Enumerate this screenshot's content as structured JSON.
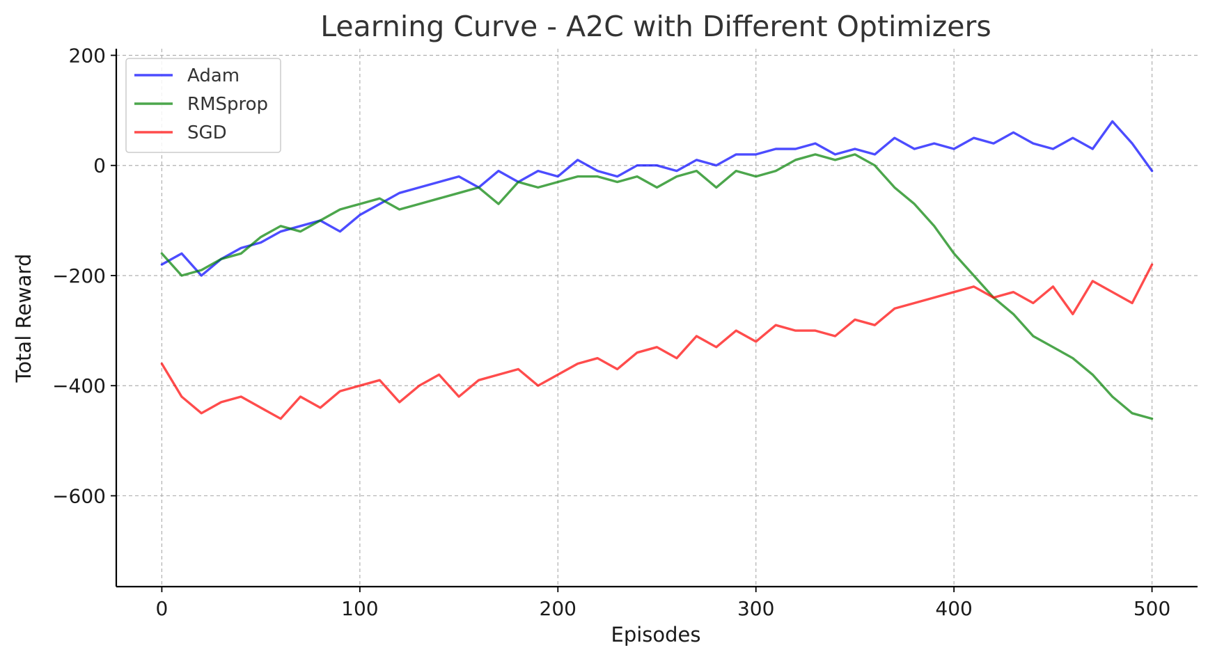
{
  "chart_data": {
    "type": "line",
    "title": "Learning Curve - A2C with Different Optimizers",
    "xlabel": "Episodes",
    "ylabel": "Total Reward",
    "xlim": [
      -23,
      523
    ],
    "ylim": [
      -765,
      212
    ],
    "xticks": [
      0,
      100,
      200,
      300,
      400,
      500
    ],
    "yticks": [
      200,
      0,
      -200,
      -400,
      -600
    ],
    "xtick_labels": [
      "0",
      "100",
      "200",
      "300",
      "400",
      "500"
    ],
    "ytick_labels": [
      "200",
      "0",
      "−200",
      "−400",
      "−600"
    ],
    "grid": true,
    "legend_position": "upper-left",
    "x": [
      0,
      10,
      20,
      30,
      40,
      50,
      60,
      70,
      80,
      90,
      100,
      110,
      120,
      130,
      140,
      150,
      160,
      170,
      180,
      190,
      200,
      210,
      220,
      230,
      240,
      250,
      260,
      270,
      280,
      290,
      300,
      310,
      320,
      330,
      340,
      350,
      360,
      370,
      380,
      390,
      400,
      410,
      420,
      430,
      440,
      450,
      460,
      470,
      480,
      490,
      500
    ],
    "series": [
      {
        "name": "Adam",
        "color": "#0000ff",
        "values": [
          -180,
          -160,
          -200,
          -170,
          -150,
          -140,
          -120,
          -110,
          -100,
          -120,
          -90,
          -70,
          -50,
          -40,
          -30,
          -20,
          -40,
          -10,
          -30,
          -10,
          -20,
          10,
          -10,
          -20,
          0,
          0,
          -10,
          10,
          0,
          20,
          20,
          30,
          30,
          40,
          20,
          30,
          20,
          50,
          30,
          40,
          30,
          50,
          40,
          60,
          40,
          30,
          50,
          30,
          80,
          40,
          -10
        ]
      },
      {
        "name": "RMSprop",
        "color": "#008000",
        "values": [
          -160,
          -200,
          -190,
          -170,
          -160,
          -130,
          -110,
          -120,
          -100,
          -80,
          -70,
          -60,
          -80,
          -70,
          -60,
          -50,
          -40,
          -70,
          -30,
          -40,
          -30,
          -20,
          -20,
          -30,
          -20,
          -40,
          -20,
          -10,
          -40,
          -10,
          -20,
          -10,
          10,
          20,
          10,
          20,
          0,
          -40,
          -70,
          -110,
          -160,
          -200,
          -240,
          -270,
          -310,
          -330,
          -350,
          -380,
          -420,
          -450,
          -460
        ]
      },
      {
        "name": "SGD",
        "color": "#ff0000",
        "values": [
          -360,
          -420,
          -450,
          -430,
          -420,
          -440,
          -460,
          -420,
          -440,
          -410,
          -400,
          -390,
          -430,
          -400,
          -380,
          -420,
          -390,
          -380,
          -370,
          -400,
          -380,
          -360,
          -350,
          -370,
          -340,
          -330,
          -350,
          -310,
          -330,
          -300,
          -320,
          -290,
          -300,
          -300,
          -310,
          -280,
          -290,
          -260,
          -250,
          -240,
          -230,
          -220,
          -240,
          -230,
          -250,
          -220,
          -270,
          -210,
          -230,
          -250,
          -180
        ]
      }
    ]
  }
}
